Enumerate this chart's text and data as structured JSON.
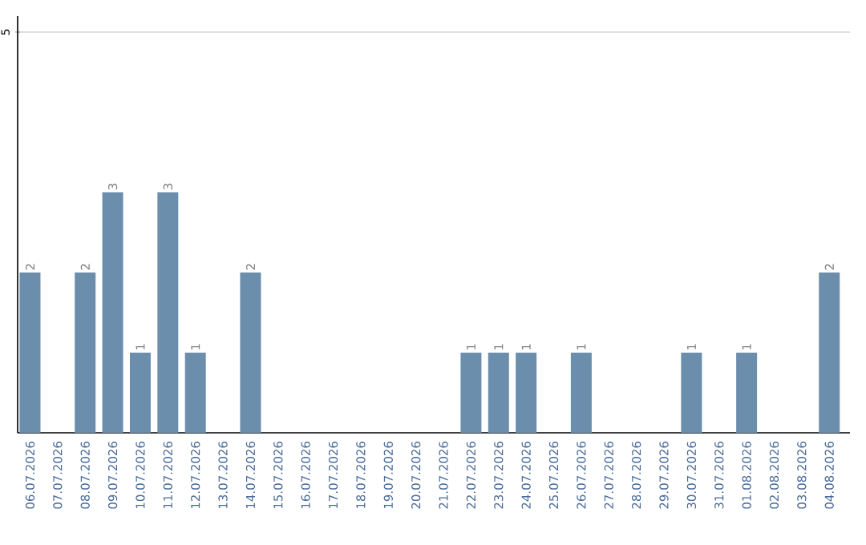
{
  "chart_data": {
    "type": "bar",
    "categories": [
      "06.07.2026",
      "07.07.2026",
      "08.07.2026",
      "09.07.2026",
      "10.07.2026",
      "11.07.2026",
      "12.07.2026",
      "13.07.2026",
      "14.07.2026",
      "15.07.2026",
      "16.07.2026",
      "17.07.2026",
      "18.07.2026",
      "19.07.2026",
      "20.07.2026",
      "21.07.2026",
      "22.07.2026",
      "23.07.2026",
      "24.07.2026",
      "25.07.2026",
      "26.07.2026",
      "27.07.2026",
      "28.07.2026",
      "29.07.2026",
      "30.07.2026",
      "31.07.2026",
      "01.08.2026",
      "02.08.2026",
      "03.08.2026",
      "04.08.2026"
    ],
    "values": [
      2,
      0,
      2,
      3,
      1,
      3,
      1,
      0,
      2,
      0,
      0,
      0,
      0,
      0,
      0,
      0,
      1,
      1,
      1,
      0,
      1,
      0,
      0,
      0,
      1,
      0,
      1,
      0,
      0,
      2
    ],
    "value_labels": [
      "2",
      null,
      "2",
      "3",
      "1",
      "3",
      "1",
      null,
      "2",
      null,
      null,
      null,
      null,
      null,
      null,
      null,
      "1",
      "1",
      "1",
      null,
      "1",
      null,
      null,
      null,
      "1",
      null,
      "1",
      null,
      null,
      "2"
    ],
    "color": "#6c8ead",
    "ylim": [
      0,
      5.2
    ],
    "yticks": [
      5
    ],
    "grid": "y"
  }
}
